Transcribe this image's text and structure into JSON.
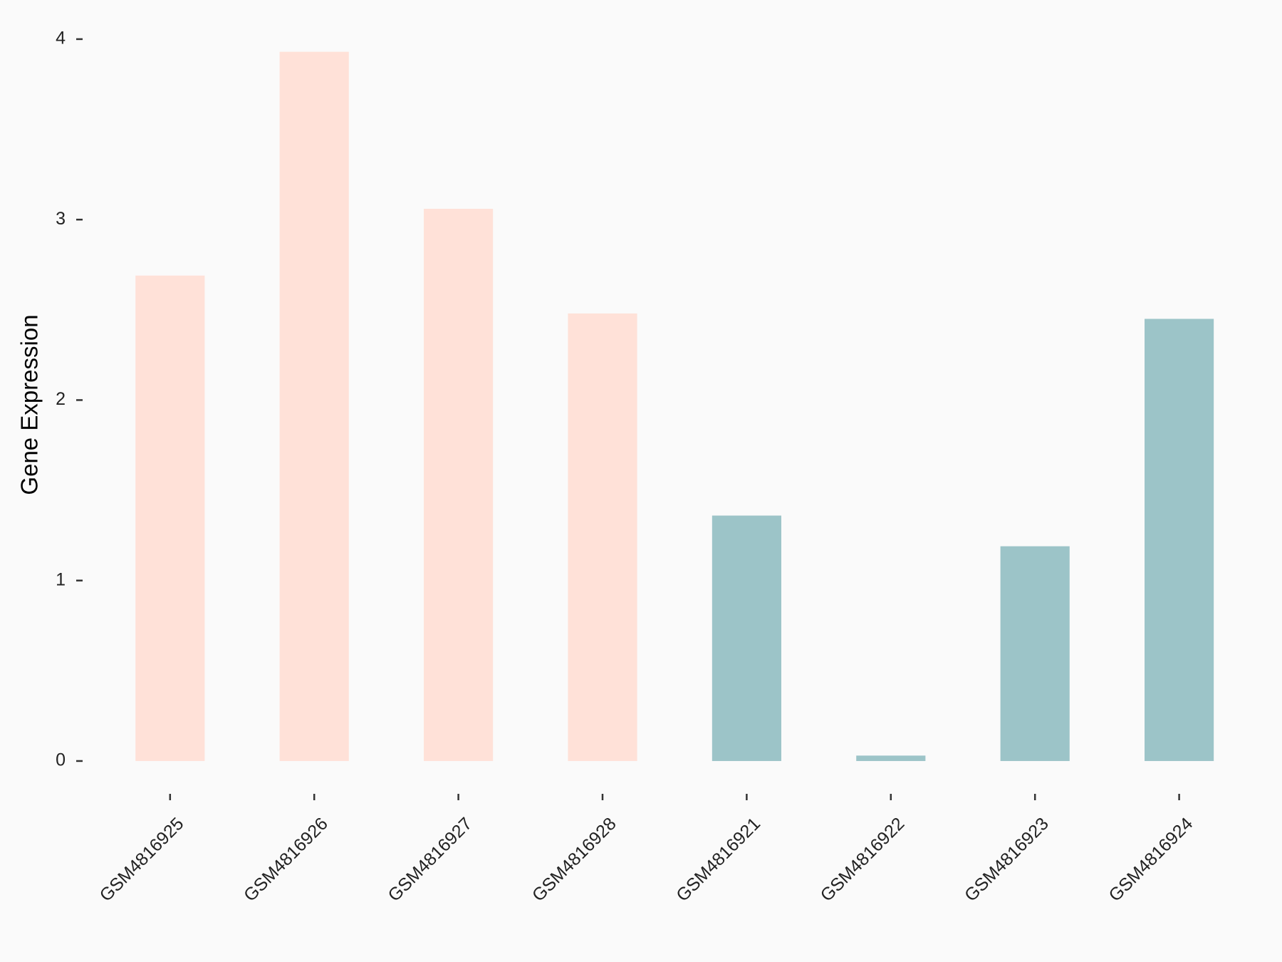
{
  "chart_data": {
    "type": "bar",
    "y_label": "Gene Expression",
    "categories": [
      "GSM4816925",
      "GSM4816926",
      "GSM4816927",
      "GSM4816928",
      "GSM4816921",
      "GSM4816922",
      "GSM4816923",
      "GSM4816924"
    ],
    "values": [
      2.69,
      3.93,
      3.06,
      2.48,
      1.36,
      0.03,
      1.19,
      2.45
    ],
    "colors": [
      "#ffe1d8",
      "#ffe1d8",
      "#ffe1d8",
      "#ffe1d8",
      "#9cc4c8",
      "#9cc4c8",
      "#9cc4c8",
      "#9cc4c8"
    ],
    "ylim": [
      -0.2,
      4.13
    ],
    "yticks": [
      0,
      1,
      2,
      3,
      4
    ]
  }
}
